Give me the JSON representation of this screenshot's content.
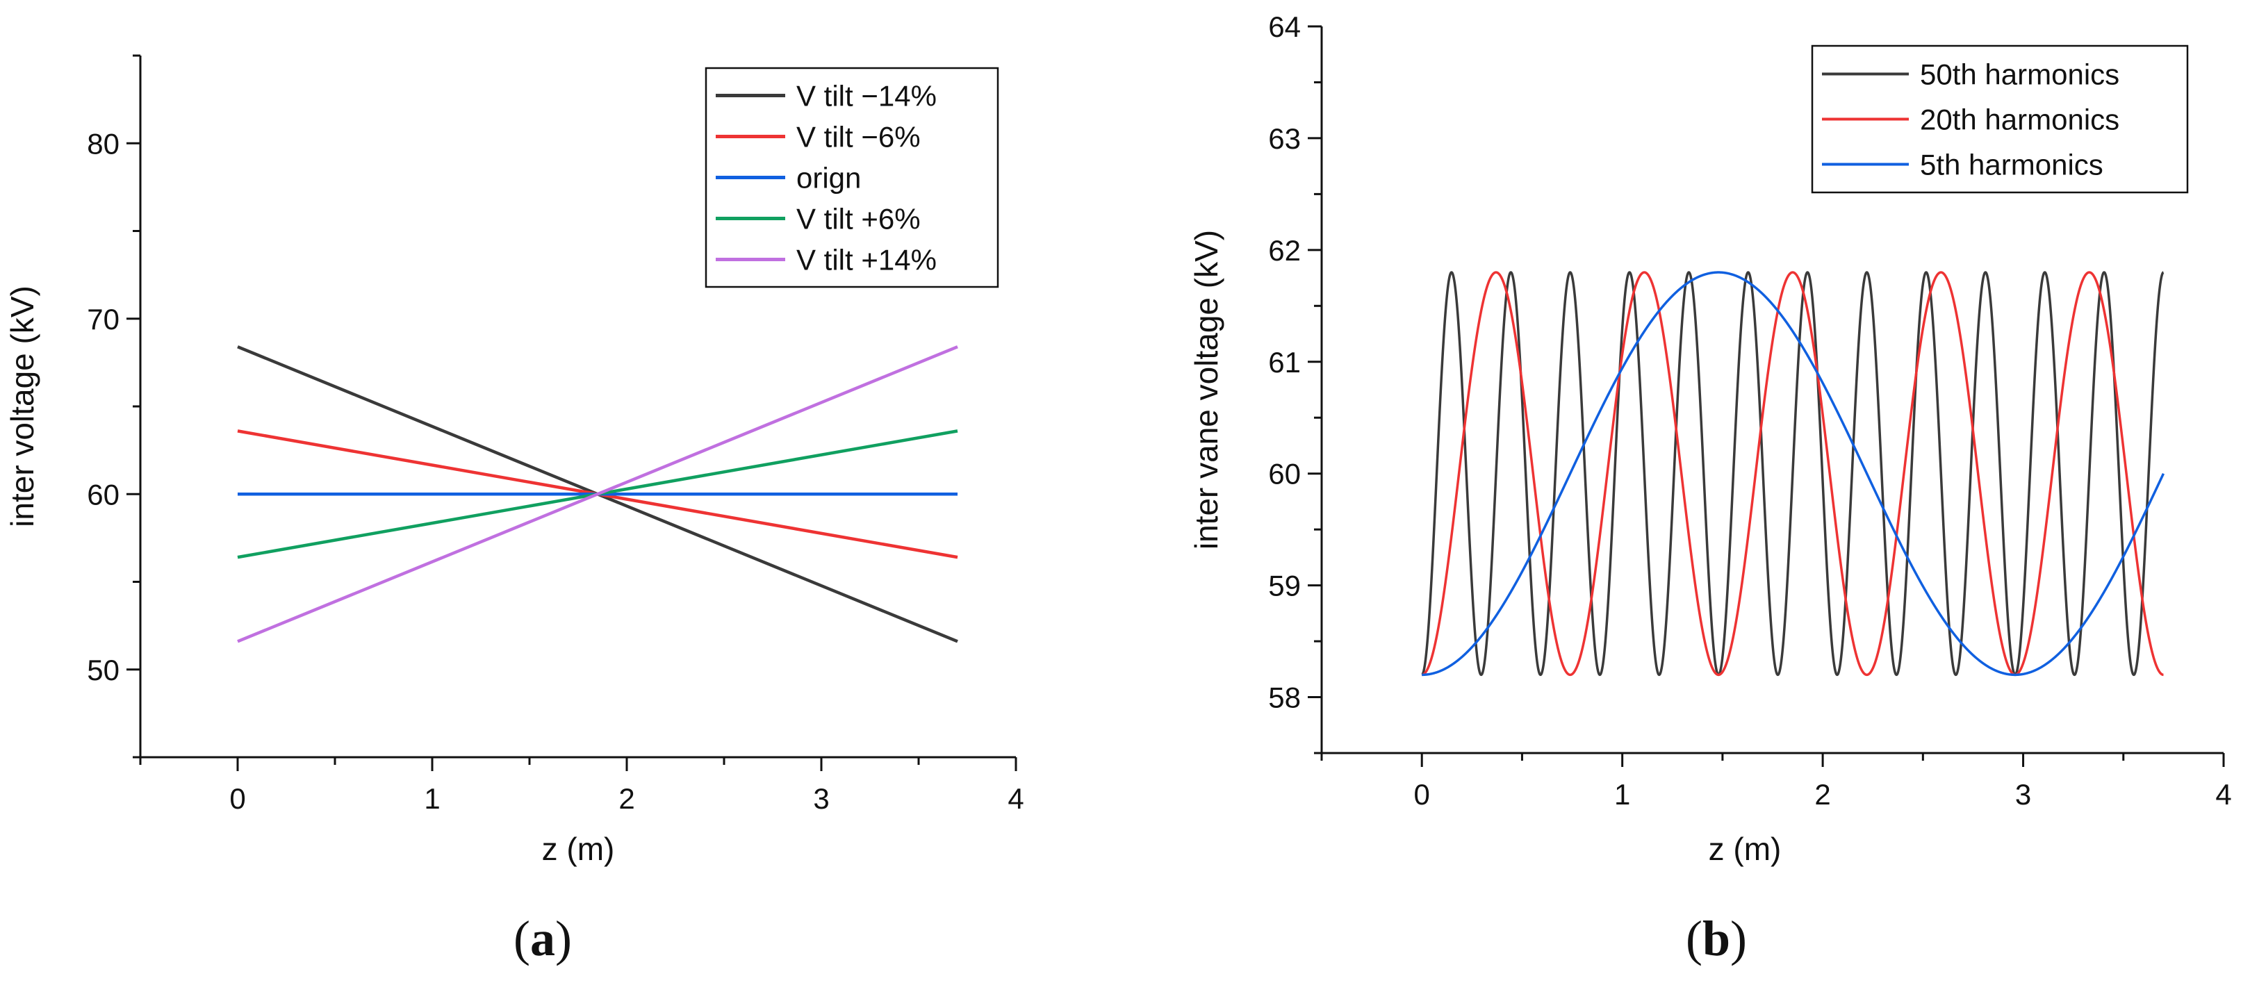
{
  "chart_data": [
    {
      "type": "line",
      "panel_label": {
        "open": "(",
        "letter": "a",
        "close": ")"
      },
      "title": "",
      "xlabel": "z (m)",
      "ylabel": "inter voltage (kV)",
      "xlim": [
        -0.5,
        4
      ],
      "ylim": [
        45,
        85
      ],
      "xticks": [
        0,
        1,
        2,
        3,
        4
      ],
      "yticks": [
        50,
        60,
        70,
        80
      ],
      "legend_position": "top-right",
      "series": [
        {
          "name": "V tilt −14%",
          "color": "#3a3a3a",
          "x": [
            0,
            3.7
          ],
          "y": [
            68.4,
            51.6
          ]
        },
        {
          "name": "V tilt −6%",
          "color": "#ee3333",
          "x": [
            0,
            3.7
          ],
          "y": [
            63.6,
            56.4
          ]
        },
        {
          "name": "orign",
          "color": "#1060e0",
          "x": [
            0,
            3.7
          ],
          "y": [
            60,
            60
          ]
        },
        {
          "name": "V tilt +6%",
          "color": "#10a060",
          "x": [
            0,
            3.7
          ],
          "y": [
            56.4,
            63.6
          ]
        },
        {
          "name": "V tilt +14%",
          "color": "#c070e0",
          "x": [
            0,
            3.7
          ],
          "y": [
            51.6,
            68.4
          ]
        }
      ]
    },
    {
      "type": "line",
      "panel_label": {
        "open": "(",
        "letter": "b",
        "close": ")"
      },
      "title": "",
      "xlabel": "z (m)",
      "ylabel": "inter vane voltage (kV)",
      "xlim": [
        -0.5,
        4
      ],
      "ylim": [
        57.5,
        64
      ],
      "xticks": [
        0,
        1,
        2,
        3,
        4
      ],
      "yticks": [
        58,
        59,
        60,
        61,
        62,
        63,
        64
      ],
      "legend_position": "top-right",
      "series": [
        {
          "name": "50th harmonics",
          "color": "#3a3a3a",
          "mean": 60,
          "amplitude": 1.8,
          "period": 0.296,
          "x_range": [
            0,
            3.7
          ]
        },
        {
          "name": "20th harmonics",
          "color": "#ee3333",
          "mean": 60,
          "amplitude": 1.8,
          "period": 0.74,
          "x_range": [
            0,
            3.7
          ]
        },
        {
          "name": "5th harmonics",
          "color": "#1060e0",
          "mean": 60,
          "amplitude": 1.8,
          "period": 2.96,
          "x_range": [
            0,
            3.7
          ]
        }
      ]
    }
  ]
}
